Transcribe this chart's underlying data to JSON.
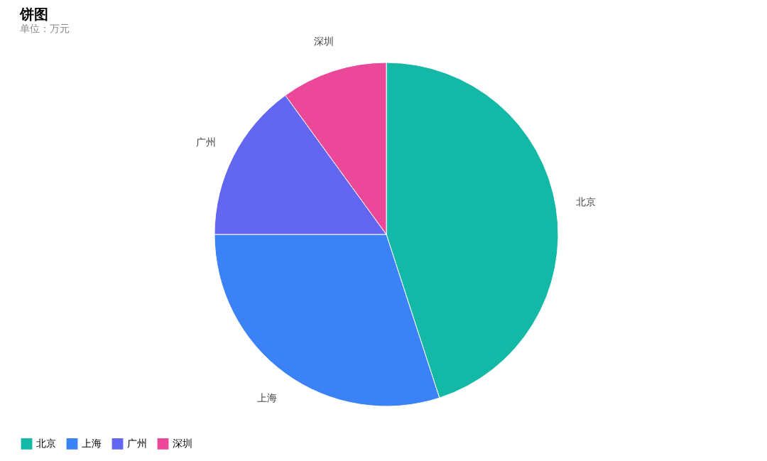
{
  "chart_data": {
    "type": "pie",
    "title": "饼图",
    "subtitle": "单位：万元",
    "categories": [
      "北京",
      "上海",
      "广州",
      "深圳"
    ],
    "values": [
      45,
      30,
      15,
      10
    ],
    "colors": [
      "#14b8a6",
      "#3b82f6",
      "#6366f1",
      "#ec4899"
    ],
    "legend": "bottom"
  }
}
